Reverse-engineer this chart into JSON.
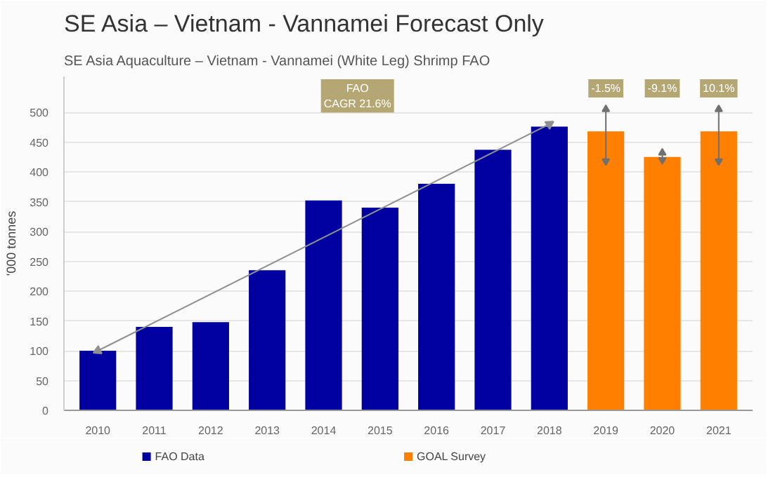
{
  "chart_data": {
    "type": "bar",
    "title": "SE Asia – Vietnam - Vannamei Forecast Only",
    "subtitle": "SE Asia Aquaculture – Vietnam - Vannamei (White Leg) Shrimp FAO",
    "ylabel": "'000 tonnes",
    "categories": [
      "2010",
      "2011",
      "2012",
      "2013",
      "2014",
      "2015",
      "2016",
      "2017",
      "2018",
      "2019",
      "2020",
      "2021"
    ],
    "series": [
      {
        "name": "FAO Data",
        "color": "#0000a0",
        "values": [
          100,
          140,
          148,
          235,
          352,
          340,
          380,
          437,
          476,
          null,
          null,
          null
        ]
      },
      {
        "name": "GOAL Survey",
        "color": "#ff7f00",
        "values": [
          null,
          null,
          null,
          null,
          null,
          null,
          null,
          null,
          null,
          468,
          425,
          468
        ],
        "errors": [
          null,
          null,
          null,
          null,
          null,
          null,
          null,
          null,
          null,
          [
            418,
            505
          ],
          [
            420,
            432
          ],
          [
            418,
            505
          ]
        ]
      },
      {
        "type": "line",
        "color": "#909090",
        "marker": "triangle",
        "values": [
          100,
          null,
          null,
          null,
          null,
          null,
          null,
          null,
          480,
          null,
          null,
          null
        ]
      }
    ],
    "annotations": [
      "FAO\nCAGR 21.6%",
      {
        "text": "-1.5%",
        "x": "2019"
      },
      {
        "text": "-9.1%",
        "x": "2020"
      },
      {
        "text": "10.1%",
        "x": "2021"
      }
    ],
    "ylim": [
      0,
      560
    ],
    "yticks": [
      0,
      50,
      100,
      150,
      200,
      250,
      300,
      350,
      400,
      450,
      500
    ],
    "grid": "y",
    "legend": "bottom"
  }
}
